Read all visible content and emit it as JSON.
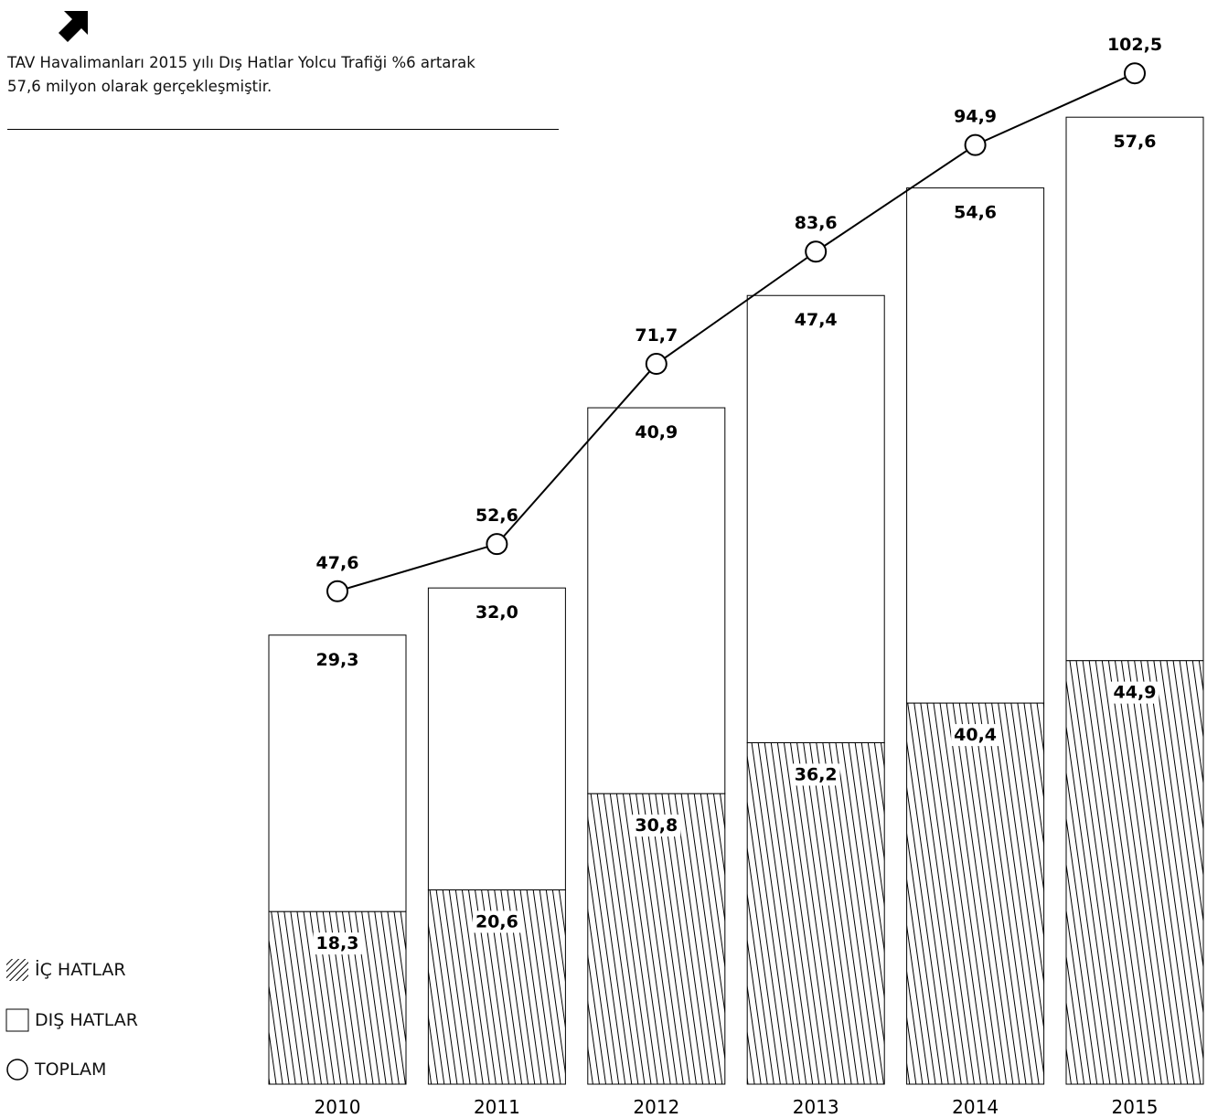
{
  "header": {
    "icon": "arrow-up-right-icon",
    "subtitle_line1": "TAV Havalimanları 2015 yılı Dış Hatlar Yolcu Trafiği %6 artarak",
    "subtitle_line2": "57,6 milyon olarak gerçekleşmiştir."
  },
  "legend": {
    "domestic": "İÇ HATLAR",
    "international": "DIŞ HATLAR",
    "total": "TOPLAM"
  },
  "chart_data": {
    "type": "bar",
    "stacked": true,
    "categories": [
      "2010",
      "2011",
      "2012",
      "2013",
      "2014",
      "2015"
    ],
    "series": [
      {
        "name": "İÇ HATLAR",
        "pattern": "hatched",
        "values": [
          18.3,
          20.6,
          30.8,
          36.2,
          40.4,
          44.9
        ],
        "labels": [
          "18,3",
          "20,6",
          "30,8",
          "36,2",
          "40,4",
          "44,9"
        ]
      },
      {
        "name": "DIŞ HATLAR",
        "pattern": "white",
        "values": [
          29.3,
          32.0,
          40.9,
          47.4,
          54.6,
          57.6
        ],
        "labels": [
          "29,3",
          "32,0",
          "40,9",
          "47,4",
          "54,6",
          "57,6"
        ]
      },
      {
        "name": "TOPLAM",
        "type": "line",
        "values": [
          47.6,
          52.6,
          71.7,
          83.6,
          94.9,
          102.5
        ],
        "labels": [
          "47,6",
          "52,6",
          "71,7",
          "83,6",
          "94,9",
          "102,5"
        ]
      }
    ],
    "grid": false,
    "legend_position": "bottom-left",
    "colors": {
      "stroke": "#000000",
      "fill": "#ffffff"
    }
  }
}
